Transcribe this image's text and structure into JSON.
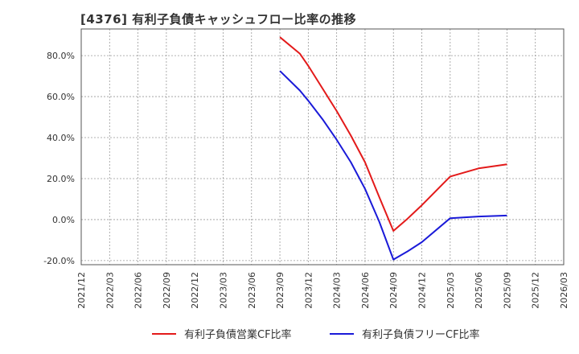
{
  "chart_data": {
    "type": "line",
    "title": "[4376]  有利子負債キャッシュフロー比率の推移",
    "xlabel": "",
    "ylabel": "",
    "ylim": [
      -22,
      93
    ],
    "y_ticks": [
      -20,
      0,
      20,
      40,
      60,
      80
    ],
    "y_tick_labels": [
      "-20.0%",
      "0.0%",
      "20.0%",
      "40.0%",
      "60.0%",
      "80.0%"
    ],
    "x_categories": [
      "2021/12",
      "2022/03",
      "2022/06",
      "2022/09",
      "2022/12",
      "2023/03",
      "2023/06",
      "2023/09",
      "2023/12",
      "2024/03",
      "2024/06",
      "2024/09",
      "2024/12",
      "2025/03",
      "2025/06",
      "2025/09",
      "2025/12",
      "2026/03"
    ],
    "grid": true,
    "legend_position": "bottom",
    "series": [
      {
        "name": "有利子負債営業CF比率",
        "color": "#e31a1a",
        "points": [
          [
            7,
            89.0
          ],
          [
            7.7,
            81.0
          ],
          [
            8,
            75.0
          ],
          [
            8.5,
            64.0
          ],
          [
            9,
            53.0
          ],
          [
            9.5,
            41.0
          ],
          [
            10,
            28.0
          ],
          [
            10.5,
            11.0
          ],
          [
            11,
            -5.5
          ],
          [
            11.5,
            0.5
          ],
          [
            12,
            7.0
          ],
          [
            13,
            21.0
          ],
          [
            14,
            25.0
          ],
          [
            15,
            27.0
          ]
        ]
      },
      {
        "name": "有利子負債フリーCF比率",
        "color": "#1a1ad8",
        "points": [
          [
            7,
            72.5
          ],
          [
            7.7,
            63.0
          ],
          [
            8,
            58.0
          ],
          [
            8.5,
            49.0
          ],
          [
            9,
            39.0
          ],
          [
            9.5,
            28.0
          ],
          [
            10,
            15.0
          ],
          [
            10.5,
            -1.0
          ],
          [
            11,
            -19.5
          ],
          [
            11.5,
            -15.5
          ],
          [
            12,
            -11.0
          ],
          [
            13,
            0.7
          ],
          [
            14,
            1.5
          ],
          [
            15,
            2.0
          ]
        ]
      }
    ]
  }
}
